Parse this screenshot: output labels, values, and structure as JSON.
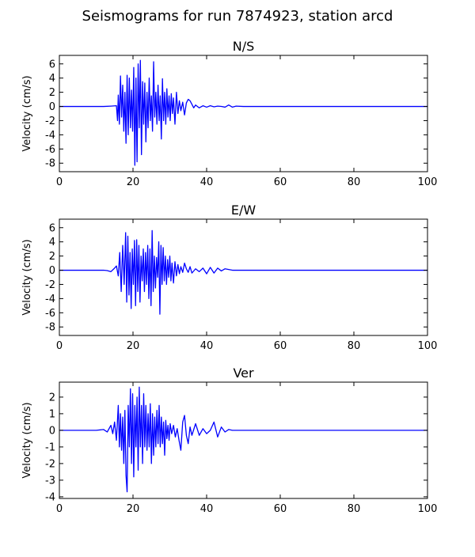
{
  "figure": {
    "suptitle": "Seismograms for run 7874923, station arcd"
  },
  "chart_data": [
    {
      "type": "line",
      "title": "N/S",
      "xlabel": "",
      "ylabel": "Velocity (cm/s)",
      "xlim": [
        0,
        100
      ],
      "ylim": [
        -9.2,
        7.2
      ],
      "xticks": [
        0,
        20,
        40,
        60,
        80,
        100
      ],
      "yticks": [
        -8,
        -6,
        -4,
        -2,
        0,
        2,
        4,
        6
      ],
      "grid": false,
      "color": "#0000ff",
      "series": [
        {
          "x": [
            0,
            8,
            12,
            14,
            15.5,
            15.8,
            16.0,
            16.3,
            16.6,
            16.9,
            17.2,
            17.5,
            17.8,
            18.1,
            18.4,
            18.7,
            19.0,
            19.3,
            19.6,
            19.9,
            20.2,
            20.5,
            20.8,
            21.1,
            21.4,
            21.7,
            22.0,
            22.3,
            22.6,
            22.9,
            23.2,
            23.5,
            23.8,
            24.1,
            24.4,
            24.7,
            25.0,
            25.3,
            25.6,
            25.9,
            26.2,
            26.5,
            26.8,
            27.1,
            27.4,
            27.7,
            28.0,
            28.3,
            28.6,
            28.9,
            29.2,
            29.5,
            29.8,
            30.1,
            30.4,
            30.7,
            31.0,
            31.4,
            31.8,
            32.2,
            32.6,
            33.0,
            33.5,
            34.0,
            34.5,
            35.0,
            35.5,
            36.0,
            36.5,
            37.0,
            38.0,
            39.0,
            40.0,
            41.0,
            42.0,
            43.0,
            44.0,
            45.0,
            46.0,
            47.0,
            48.0,
            50.0,
            55.0,
            60.0,
            70.0,
            80.0,
            90.0,
            100.0
          ],
          "y": [
            0,
            0,
            0,
            0.05,
            0.1,
            -2.0,
            1.6,
            -2.5,
            4.3,
            -1.5,
            3.0,
            -3.5,
            2.0,
            -5.2,
            4.4,
            -4.0,
            4.0,
            -3.0,
            2.3,
            -3.5,
            5.5,
            -8.3,
            4.0,
            -7.8,
            6.0,
            -3.0,
            6.5,
            -6.8,
            3.5,
            -2.5,
            3.3,
            -5.0,
            2.0,
            -3.0,
            4.0,
            -2.0,
            1.5,
            -3.5,
            6.3,
            -1.5,
            2.0,
            -2.5,
            3.0,
            -2.0,
            1.5,
            -4.6,
            3.9,
            -2.0,
            2.0,
            -2.5,
            2.5,
            -1.5,
            1.5,
            -2.0,
            1.8,
            -1.0,
            1.2,
            -2.5,
            2.0,
            -1.0,
            0.8,
            -0.6,
            0.6,
            -1.2,
            0.5,
            1.0,
            0.8,
            0.3,
            -0.2,
            0.2,
            -0.2,
            0.1,
            -0.1,
            0.1,
            -0.05,
            0.05,
            0,
            -0.1,
            0.2,
            -0.1,
            0.05,
            0,
            0,
            0,
            0,
            0,
            0,
            0
          ]
        }
      ]
    },
    {
      "type": "line",
      "title": "E/W",
      "xlabel": "",
      "ylabel": "Velocity (cm/s)",
      "xlim": [
        0,
        100
      ],
      "ylim": [
        -9.2,
        7.2
      ],
      "xticks": [
        0,
        20,
        40,
        60,
        80,
        100
      ],
      "yticks": [
        -8,
        -6,
        -4,
        -2,
        0,
        2,
        4,
        6
      ],
      "grid": false,
      "color": "#0000ff",
      "series": [
        {
          "x": [
            0,
            8,
            12,
            13,
            14,
            15,
            15.5,
            16.0,
            16.4,
            16.8,
            17.2,
            17.6,
            18.0,
            18.3,
            18.6,
            18.9,
            19.2,
            19.5,
            19.8,
            20.1,
            20.4,
            20.7,
            21.0,
            21.3,
            21.6,
            21.9,
            22.2,
            22.5,
            22.8,
            23.1,
            23.4,
            23.7,
            24.0,
            24.3,
            24.6,
            24.9,
            25.2,
            25.5,
            25.8,
            26.1,
            26.4,
            26.7,
            27.0,
            27.3,
            27.6,
            27.9,
            28.2,
            28.5,
            28.8,
            29.1,
            29.4,
            29.7,
            30.0,
            30.3,
            30.6,
            31.0,
            31.4,
            31.8,
            32.2,
            32.6,
            33.0,
            33.5,
            34.0,
            34.5,
            35.0,
            35.5,
            36.0,
            37.0,
            38.0,
            39.0,
            40.0,
            41.0,
            42.0,
            43.0,
            44.0,
            45.0,
            46.0,
            47.0,
            48.0,
            50.0,
            55.0,
            60.0,
            70.0,
            80.0,
            90.0,
            100.0
          ],
          "y": [
            0,
            0,
            0,
            -0.05,
            -0.2,
            0.3,
            0.6,
            -0.8,
            2.5,
            -3.0,
            3.5,
            -2.0,
            5.3,
            -4.5,
            4.8,
            -3.5,
            2.5,
            -5.4,
            3.0,
            -2.0,
            4.2,
            -5.0,
            4.3,
            -3.0,
            3.5,
            -4.5,
            2.0,
            -1.5,
            3.0,
            -3.0,
            2.5,
            -2.0,
            3.5,
            -4.0,
            3.0,
            -5.0,
            5.6,
            -3.0,
            2.0,
            -2.5,
            1.8,
            -1.0,
            4.0,
            -6.2,
            3.5,
            -2.0,
            3.2,
            -1.5,
            2.0,
            -2.0,
            1.5,
            -1.0,
            2.0,
            -1.5,
            1.0,
            -1.8,
            1.2,
            -0.8,
            0.8,
            -0.5,
            0.5,
            -0.3,
            1.0,
            0.2,
            -0.3,
            0.5,
            -0.4,
            0.2,
            -0.2,
            0.3,
            -0.5,
            0.4,
            -0.4,
            0.3,
            -0.1,
            0.2,
            0.1,
            0,
            0,
            0,
            0,
            0,
            0,
            0,
            0,
            0
          ]
        }
      ]
    },
    {
      "type": "line",
      "title": "Ver",
      "xlabel": "",
      "ylabel": "Velocity (cm/s)",
      "xlim": [
        0,
        100
      ],
      "ylim": [
        -4.1,
        2.9
      ],
      "xticks": [
        0,
        20,
        40,
        60,
        80,
        100
      ],
      "yticks": [
        -4,
        -3,
        -2,
        -1,
        0,
        1,
        2
      ],
      "grid": false,
      "color": "#0000ff",
      "series": [
        {
          "x": [
            0,
            8,
            10,
            12,
            13,
            14,
            14.5,
            15.0,
            15.5,
            16.0,
            16.3,
            16.6,
            16.9,
            17.2,
            17.5,
            17.8,
            18.1,
            18.4,
            18.7,
            19.0,
            19.3,
            19.6,
            19.9,
            20.2,
            20.5,
            20.8,
            21.1,
            21.4,
            21.7,
            22.0,
            22.3,
            22.6,
            22.9,
            23.2,
            23.5,
            23.8,
            24.1,
            24.4,
            24.7,
            25.0,
            25.3,
            25.6,
            25.9,
            26.2,
            26.5,
            26.8,
            27.1,
            27.4,
            27.7,
            28.0,
            28.3,
            28.6,
            28.9,
            29.2,
            29.5,
            29.8,
            30.1,
            30.5,
            31.0,
            31.5,
            32.0,
            32.5,
            33.0,
            33.5,
            34.0,
            34.5,
            35.0,
            35.5,
            36.0,
            37.0,
            38.0,
            39.0,
            40.0,
            41.0,
            42.0,
            43.0,
            44.0,
            45.0,
            46.0,
            47.0,
            48.0,
            50.0,
            55.0,
            60.0,
            70.0,
            80.0,
            90.0,
            100.0
          ],
          "y": [
            0,
            0,
            0,
            0.05,
            -0.1,
            0.3,
            -0.2,
            0.5,
            -0.6,
            1.5,
            -1.0,
            1.0,
            -1.2,
            0.8,
            -2.0,
            1.2,
            -2.7,
            -3.7,
            1.5,
            -1.0,
            2.5,
            -2.0,
            2.2,
            -2.8,
            1.5,
            -1.0,
            2.0,
            -2.4,
            2.6,
            -1.0,
            1.5,
            -2.0,
            2.2,
            -1.0,
            1.5,
            -1.2,
            1.0,
            -1.0,
            1.6,
            -2.0,
            1.0,
            -1.5,
            0.8,
            -1.0,
            1.2,
            -0.8,
            1.5,
            -1.0,
            0.8,
            -0.8,
            0.5,
            -1.5,
            0.6,
            -0.5,
            0.3,
            -0.6,
            0.4,
            -0.2,
            0.3,
            -0.4,
            0.1,
            -0.6,
            -1.2,
            0.5,
            0.9,
            -0.3,
            -0.8,
            0.2,
            -0.3,
            0.4,
            -0.3,
            0.1,
            -0.2,
            0.0,
            0.5,
            -0.4,
            0.2,
            -0.1,
            0.05,
            0,
            0,
            0,
            0,
            0,
            0,
            0,
            0,
            0
          ]
        }
      ]
    }
  ]
}
